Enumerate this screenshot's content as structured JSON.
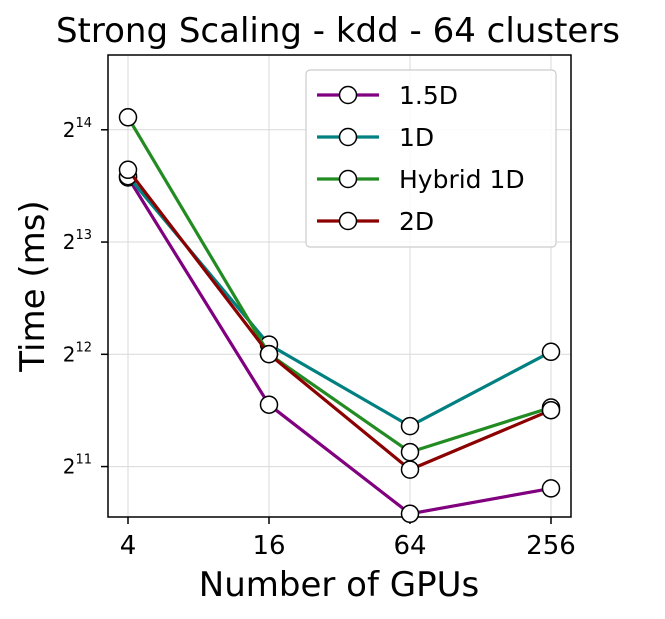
{
  "chart_data": {
    "type": "line",
    "title": "Strong Scaling - kdd - 64 clusters",
    "xlabel": "Number of GPUs",
    "ylabel": "Time (ms)",
    "x_scale": "log2",
    "y_scale": "log2",
    "categories": [
      "4",
      "16",
      "64",
      "256"
    ],
    "x": [
      4,
      16,
      64,
      256
    ],
    "yticks": [
      {
        "base": "2",
        "exp": "11",
        "value": 2048
      },
      {
        "base": "2",
        "exp": "12",
        "value": 4096
      },
      {
        "base": "2",
        "exp": "13",
        "value": 8192
      },
      {
        "base": "2",
        "exp": "14",
        "value": 16384
      }
    ],
    "ylim": [
      1500,
      26000
    ],
    "grid": true,
    "legend_position": "top-right",
    "series": [
      {
        "name": "1.5D",
        "color": "#800080",
        "values": [
          12200,
          3000,
          1530,
          1790
        ]
      },
      {
        "name": "1D",
        "color": "#008080",
        "values": [
          12300,
          4350,
          2630,
          4160
        ]
      },
      {
        "name": "Hybrid 1D",
        "color": "#228B22",
        "values": [
          17700,
          4100,
          2240,
          2950
        ]
      },
      {
        "name": "2D",
        "color": "#8B0000",
        "values": [
          12800,
          4100,
          2010,
          2900
        ]
      }
    ]
  }
}
